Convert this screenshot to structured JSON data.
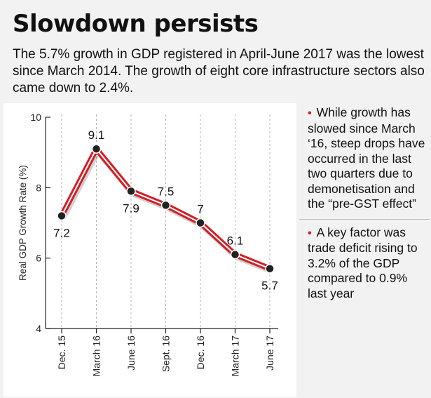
{
  "title": "Slowdown persists",
  "subtitle": "The 5.7% growth in GDP registered in April-June 2017 was the lowest since March 2014. The growth of eight core infrastructure sectors also came down to 2.4%.",
  "notes": [
    "While growth has slowed since March ‘16, steep drops have occurred in the last two quarters due to demonetisation and the “pre-GST effect”",
    "A key factor was trade deficit rising to 3.2% of the GDP compared to 0.9% last year"
  ],
  "colors": {
    "line": "#d21f26",
    "line_inner": "#ffffff",
    "grid": "#b5b5b5",
    "axis": "#222222"
  },
  "chart_data": {
    "type": "line",
    "title": "",
    "xlabel": "",
    "ylabel": "Real GDP Growth Rate (%)",
    "ylim": [
      4,
      10
    ],
    "yticks": [
      4,
      6,
      8,
      10
    ],
    "categories": [
      "Dec. 15",
      "March 16",
      "June 16",
      "Sept. 16",
      "Dec. 16",
      "March 17",
      "June 17"
    ],
    "values": [
      7.2,
      9.1,
      7.9,
      7.5,
      7,
      6.1,
      5.7
    ],
    "labels": [
      "7.2",
      "9.1",
      "7.9",
      "7.5",
      "7",
      "6.1",
      "5.7"
    ],
    "grid": "vertical-dashed"
  }
}
